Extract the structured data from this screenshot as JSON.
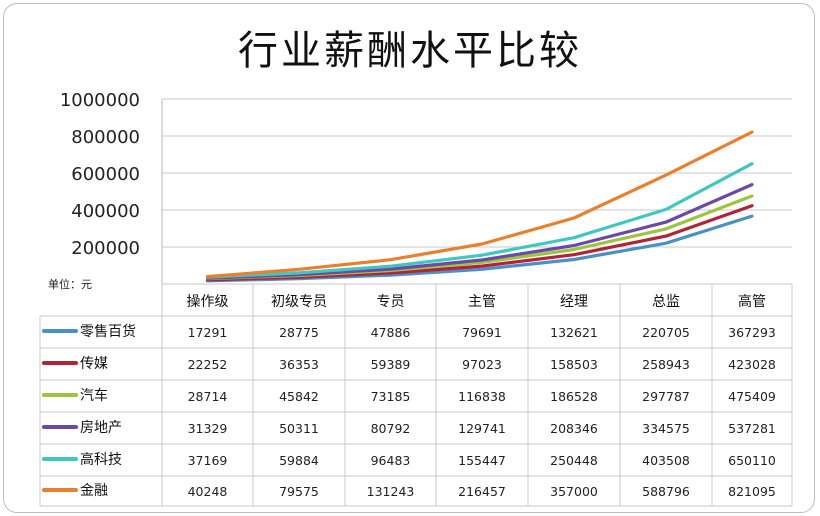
{
  "chart_data": {
    "type": "line",
    "title": "行业薪酬水平比较",
    "unit_label": "单位：元",
    "categories": [
      "操作级",
      "初级专员",
      "专员",
      "主管",
      "经理",
      "总监",
      "高管"
    ],
    "ylim": [
      0,
      1000000
    ],
    "yticks": [
      "200000",
      "400000",
      "600000",
      "800000",
      "1000000"
    ],
    "grid": true,
    "legend": "data-table",
    "series": [
      {
        "name": "零售百货",
        "color": "#4a90c8",
        "values": [
          17291,
          28775,
          47886,
          79691,
          132621,
          220705,
          367293
        ]
      },
      {
        "name": "传媒",
        "color": "#b0243a",
        "values": [
          22252,
          36353,
          59389,
          97023,
          158503,
          258943,
          423028
        ]
      },
      {
        "name": "汽车",
        "color": "#9cc43c",
        "values": [
          28714,
          45842,
          73185,
          116838,
          186528,
          297787,
          475409
        ]
      },
      {
        "name": "房地产",
        "color": "#6a4aa6",
        "values": [
          31329,
          50311,
          80792,
          129741,
          208346,
          334575,
          537281
        ]
      },
      {
        "name": "高科技",
        "color": "#40c8c0",
        "values": [
          37169,
          59884,
          96483,
          155447,
          250448,
          403508,
          650110
        ]
      },
      {
        "name": "金融",
        "color": "#e8812e",
        "values": [
          40248,
          79575,
          131243,
          216457,
          357000,
          588796,
          821095
        ]
      }
    ]
  }
}
